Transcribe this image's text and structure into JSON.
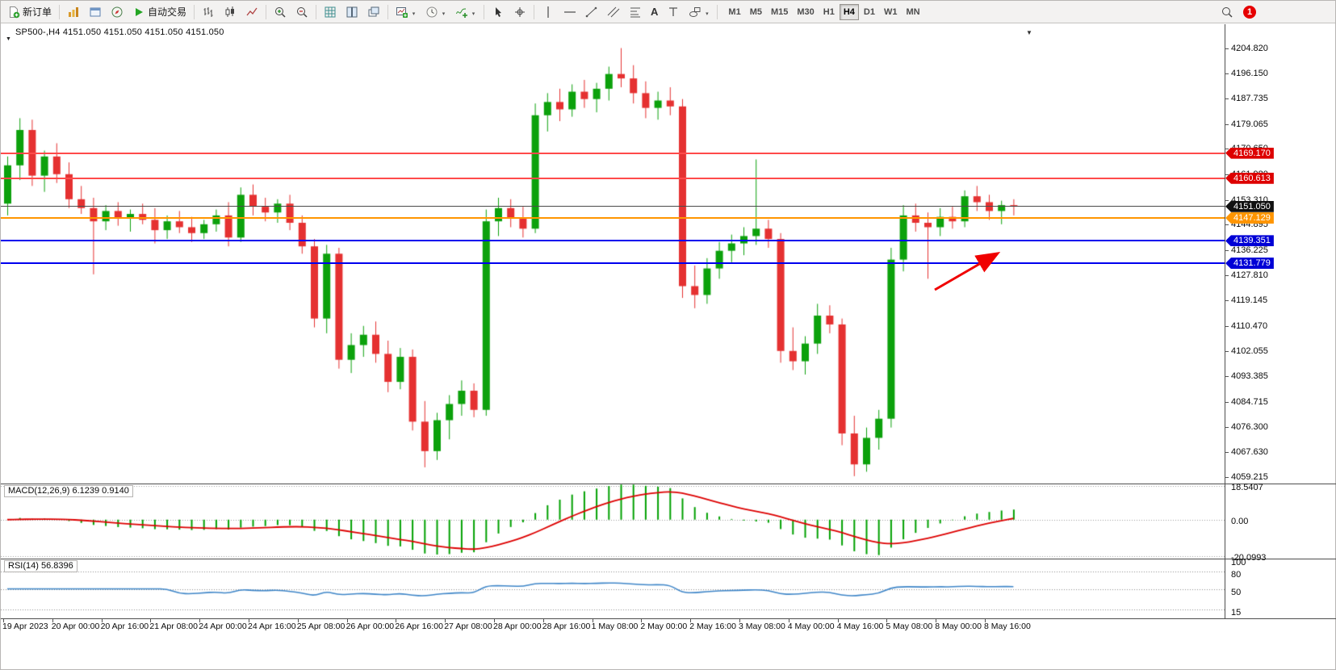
{
  "toolbar": {
    "new_order": "新订单",
    "autotrading": "自动交易",
    "text_tool": "A",
    "timeframes": [
      "M1",
      "M5",
      "M15",
      "M30",
      "H1",
      "H4",
      "D1",
      "W1",
      "MN"
    ],
    "active_timeframe": "H4",
    "notification_count": "1"
  },
  "chart": {
    "ohlc_label": "SP500-,H4 4151.050 4151.050 4151.050 4151.050",
    "price_axis_ticks": [
      "4204.820",
      "4196.150",
      "4187.735",
      "4179.065",
      "4170.650",
      "4161.980",
      "4153.310",
      "4144.895",
      "4136.225",
      "4127.810",
      "4119.145",
      "4110.470",
      "4102.055",
      "4093.385",
      "4084.715",
      "4076.300",
      "4067.630",
      "4059.215"
    ],
    "levels": [
      {
        "name": "resistance-1",
        "label": "4169.170",
        "value": 4169.17,
        "line_color": "#ff4a4a",
        "badge_color": "#dd0000",
        "thickness": 2
      },
      {
        "name": "resistance-2",
        "label": "4160.613",
        "value": 4160.613,
        "line_color": "#ff4a4a",
        "badge_color": "#dd0000",
        "thickness": 2
      },
      {
        "name": "current-price",
        "label": "4151.050",
        "value": 4151.05,
        "line_color": "#4a4a4a",
        "badge_color": "#111111",
        "thickness": 1
      },
      {
        "name": "pivot-orange",
        "label": "4147.129",
        "value": 4147.129,
        "line_color": "#ff9500",
        "badge_color": "#ff9500",
        "thickness": 2
      },
      {
        "name": "support-1",
        "label": "4139.351",
        "value": 4139.351,
        "line_color": "#0000ee",
        "badge_color": "#0000d6",
        "thickness": 2
      },
      {
        "name": "support-2",
        "label": "4131.779",
        "value": 4131.779,
        "line_color": "#0000ee",
        "badge_color": "#0000d6",
        "thickness": 2
      }
    ]
  },
  "macd": {
    "label": "MACD(12,26,9) 6.1239 0.9140",
    "params": "12,26,9",
    "value": "6.1239",
    "signal": "0.9140",
    "axis": [
      {
        "label": "18.5407",
        "value": 18.5407
      },
      {
        "label": "0.00",
        "value": 0
      },
      {
        "label": "-20.0993",
        "value": -20.0993
      }
    ],
    "histogram_color": "#00a000",
    "signal_color": "#dd0000"
  },
  "rsi": {
    "label": "RSI(14) 56.8396",
    "value": "56.8396",
    "line_color": "#3f86c8",
    "levels": [
      {
        "label": "100",
        "value": 100
      },
      {
        "label": "80",
        "value": 80
      },
      {
        "label": "50",
        "value": 50
      },
      {
        "label": "15",
        "value": 15
      }
    ],
    "dashed": [
      80,
      50,
      15
    ]
  },
  "chart_data": {
    "type": "candlestick",
    "symbol": "SP500-",
    "timeframe": "H4",
    "current_price": 4151.05,
    "price_range": [
      4057.0,
      4212.9
    ],
    "up_color": "#0ca10c",
    "down_color": "#e53131",
    "x_labels": [
      "19 Apr 2023",
      "20 Apr 00:00",
      "20 Apr 16:00",
      "21 Apr 08:00",
      "24 Apr 00:00",
      "24 Apr 16:00",
      "25 Apr 08:00",
      "26 Apr 00:00",
      "26 Apr 16:00",
      "27 Apr 08:00",
      "28 Apr 00:00",
      "28 Apr 16:00",
      "1 May 08:00",
      "2 May 00:00",
      "2 May 16:00",
      "3 May 08:00",
      "4 May 00:00",
      "4 May 16:00",
      "5 May 08:00",
      "8 May 00:00",
      "8 May 16:00"
    ],
    "candles": [
      [
        4152.0,
        4168.0,
        4148.0,
        4165.0
      ],
      [
        4165.0,
        4181.0,
        4160.0,
        4177.0
      ],
      [
        4177.0,
        4180.5,
        4158.0,
        4161.5
      ],
      [
        4161.5,
        4170.0,
        4156.0,
        4168.0
      ],
      [
        4168.0,
        4172.5,
        4159.0,
        4162.0
      ],
      [
        4162.0,
        4166.0,
        4150.5,
        4153.5
      ],
      [
        4153.5,
        4158.0,
        4148.5,
        4150.5
      ],
      [
        4150.5,
        4154.0,
        4128.0,
        4146.0
      ],
      [
        4146.0,
        4151.5,
        4143.0,
        4149.5
      ],
      [
        4149.5,
        4152.5,
        4144.5,
        4147.0
      ],
      [
        4147.0,
        4150.0,
        4142.5,
        4148.5
      ],
      [
        4148.5,
        4152.0,
        4145.0,
        4146.5
      ],
      [
        4146.5,
        4150.5,
        4138.5,
        4143.0
      ],
      [
        4143.0,
        4148.0,
        4140.0,
        4146.0
      ],
      [
        4146.0,
        4149.5,
        4142.0,
        4144.0
      ],
      [
        4144.0,
        4147.5,
        4139.0,
        4142.0
      ],
      [
        4142.0,
        4146.5,
        4140.0,
        4145.0
      ],
      [
        4145.0,
        4150.0,
        4142.5,
        4148.0
      ],
      [
        4148.0,
        4152.5,
        4137.5,
        4140.5
      ],
      [
        4140.5,
        4157.5,
        4139.0,
        4155.0
      ],
      [
        4155.0,
        4158.5,
        4148.0,
        4151.0
      ],
      [
        4151.0,
        4154.0,
        4146.0,
        4149.0
      ],
      [
        4149.0,
        4153.5,
        4145.5,
        4152.0
      ],
      [
        4152.0,
        4155.0,
        4143.0,
        4145.5
      ],
      [
        4145.5,
        4148.0,
        4135.0,
        4137.5
      ],
      [
        4137.5,
        4140.0,
        4110.0,
        4113.0
      ],
      [
        4113.0,
        4138.0,
        4108.0,
        4135.0
      ],
      [
        4135.0,
        4137.0,
        4096.0,
        4099.0
      ],
      [
        4099.0,
        4108.0,
        4094.5,
        4104.0
      ],
      [
        4104.0,
        4110.5,
        4100.0,
        4107.5
      ],
      [
        4107.5,
        4112.0,
        4098.0,
        4101.0
      ],
      [
        4101.0,
        4105.5,
        4088.0,
        4091.5
      ],
      [
        4091.5,
        4103.0,
        4089.0,
        4100.0
      ],
      [
        4100.0,
        4102.5,
        4075.0,
        4078.0
      ],
      [
        4078.0,
        4085.0,
        4062.5,
        4068.0
      ],
      [
        4068.0,
        4081.0,
        4065.0,
        4078.5
      ],
      [
        4078.5,
        4087.0,
        4072.0,
        4084.0
      ],
      [
        4084.0,
        4092.0,
        4080.0,
        4088.5
      ],
      [
        4088.5,
        4091.0,
        4079.5,
        4082.0
      ],
      [
        4082.0,
        4150.0,
        4080.0,
        4146.0
      ],
      [
        4146.0,
        4154.0,
        4141.0,
        4150.5
      ],
      [
        4150.5,
        4153.5,
        4144.0,
        4147.0
      ],
      [
        4147.0,
        4151.0,
        4140.5,
        4143.5
      ],
      [
        4143.5,
        4186.0,
        4142.0,
        4182.0
      ],
      [
        4182.0,
        4189.5,
        4176.5,
        4186.5
      ],
      [
        4186.5,
        4191.0,
        4180.0,
        4184.0
      ],
      [
        4184.0,
        4192.5,
        4181.5,
        4190.0
      ],
      [
        4190.0,
        4194.0,
        4184.5,
        4187.5
      ],
      [
        4187.5,
        4193.0,
        4183.0,
        4191.0
      ],
      [
        4191.0,
        4198.5,
        4187.0,
        4196.0
      ],
      [
        4196.0,
        4204.8,
        4191.5,
        4194.5
      ],
      [
        4194.5,
        4199.0,
        4186.0,
        4189.5
      ],
      [
        4189.5,
        4193.5,
        4181.0,
        4184.5
      ],
      [
        4184.5,
        4190.0,
        4180.5,
        4187.0
      ],
      [
        4187.0,
        4191.5,
        4182.0,
        4185.0
      ],
      [
        4185.0,
        4187.5,
        4120.0,
        4124.0
      ],
      [
        4124.0,
        4131.0,
        4116.5,
        4121.0
      ],
      [
        4121.0,
        4133.5,
        4118.0,
        4130.0
      ],
      [
        4130.0,
        4139.0,
        4126.5,
        4136.0
      ],
      [
        4136.0,
        4141.5,
        4132.0,
        4138.5
      ],
      [
        4138.5,
        4144.0,
        4134.5,
        4141.0
      ],
      [
        4141.0,
        4167.0,
        4138.0,
        4143.5
      ],
      [
        4143.5,
        4146.5,
        4137.0,
        4140.0
      ],
      [
        4140.0,
        4142.0,
        4098.0,
        4102.0
      ],
      [
        4102.0,
        4110.0,
        4095.5,
        4098.5
      ],
      [
        4098.5,
        4107.0,
        4094.0,
        4104.5
      ],
      [
        4104.5,
        4118.0,
        4101.0,
        4114.0
      ],
      [
        4114.0,
        4117.5,
        4108.0,
        4111.0
      ],
      [
        4111.0,
        4113.0,
        4070.0,
        4074.0
      ],
      [
        4074.0,
        4080.0,
        4059.5,
        4063.5
      ],
      [
        4063.5,
        4076.0,
        4061.0,
        4072.5
      ],
      [
        4072.5,
        4082.0,
        4068.5,
        4079.0
      ],
      [
        4079.0,
        4137.0,
        4076.0,
        4133.0
      ],
      [
        4133.0,
        4151.5,
        4129.0,
        4148.0
      ],
      [
        4148.0,
        4152.0,
        4142.5,
        4145.5
      ],
      [
        4145.5,
        4149.0,
        4126.5,
        4144.0
      ],
      [
        4144.0,
        4150.5,
        4141.0,
        4147.5
      ],
      [
        4147.5,
        4151.0,
        4143.5,
        4146.0
      ],
      [
        4146.0,
        4156.5,
        4144.0,
        4154.5
      ],
      [
        4154.5,
        4158.0,
        4149.5,
        4152.5
      ],
      [
        4152.5,
        4155.0,
        4146.5,
        4149.5
      ],
      [
        4149.5,
        4153.0,
        4145.0,
        4151.5
      ],
      [
        4151.5,
        4153.5,
        4148.0,
        4151.05
      ]
    ]
  }
}
